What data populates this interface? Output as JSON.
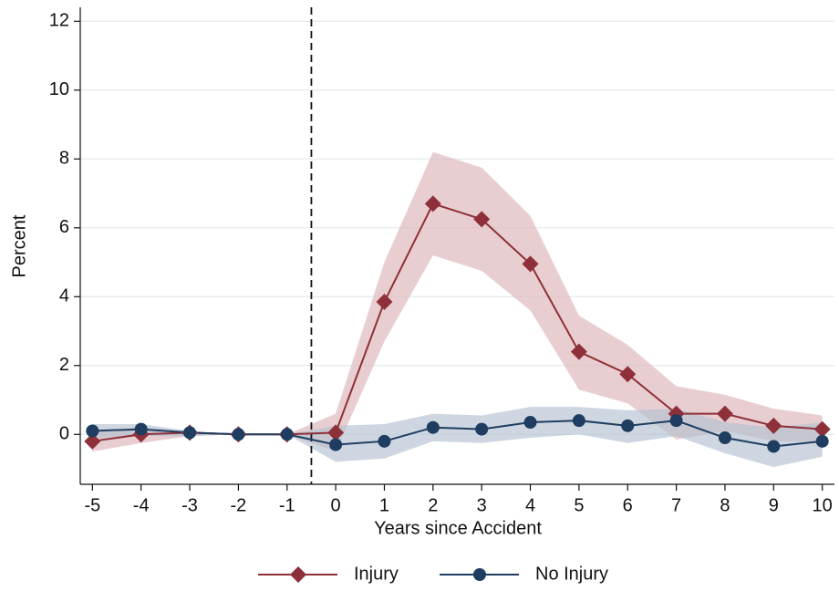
{
  "chart_data": {
    "type": "line",
    "x_label": "Years since Accident",
    "y_label": "Percent",
    "x": [
      -5,
      -4,
      -3,
      -2,
      -1,
      0,
      1,
      2,
      3,
      4,
      5,
      6,
      7,
      8,
      9,
      10
    ],
    "series": [
      {
        "name": "Injury",
        "color": "#8e3039",
        "band_color": "#dcb4b9",
        "marker": "diamond",
        "values": [
          -0.2,
          0,
          0.05,
          0,
          0,
          0.05,
          3.85,
          6.7,
          6.25,
          4.95,
          2.4,
          1.75,
          0.6,
          0.6,
          0.25,
          0.15
        ],
        "lower": [
          -0.5,
          -0.25,
          -0.05,
          0,
          0,
          -0.5,
          2.7,
          5.2,
          4.75,
          3.6,
          1.3,
          0.9,
          -0.15,
          0.1,
          -0.2,
          -0.2
        ],
        "upper": [
          0.1,
          0.2,
          0.1,
          0,
          0,
          0.6,
          5.0,
          8.2,
          7.75,
          6.35,
          3.45,
          2.6,
          1.4,
          1.15,
          0.75,
          0.55
        ]
      },
      {
        "name": "No Injury",
        "color": "#1e3d60",
        "band_color": "#b3c1d1",
        "marker": "circle",
        "values": [
          0.1,
          0.15,
          0.05,
          0,
          0,
          -0.3,
          -0.2,
          0.2,
          0.15,
          0.35,
          0.4,
          0.25,
          0.4,
          -0.1,
          -0.35,
          -0.2
        ],
        "lower": [
          -0.1,
          -0.05,
          -0.05,
          0,
          0,
          -0.8,
          -0.7,
          -0.2,
          -0.25,
          -0.1,
          0,
          -0.25,
          -0.05,
          -0.55,
          -0.95,
          -0.65
        ],
        "upper": [
          0.3,
          0.3,
          0.1,
          0,
          0,
          0.25,
          0.3,
          0.6,
          0.55,
          0.8,
          0.8,
          0.7,
          0.75,
          0.35,
          0.2,
          0.35
        ]
      }
    ],
    "vline": -0.5,
    "xlim": [
      -5.25,
      10.25
    ],
    "xticks": [
      -5,
      -4,
      -3,
      -2,
      -1,
      0,
      1,
      2,
      3,
      4,
      5,
      6,
      7,
      8,
      9,
      10
    ],
    "ylim": [
      -1.45,
      12.3
    ],
    "yticks": [
      0,
      2,
      4,
      6,
      8,
      10,
      12
    ],
    "grid": true,
    "legend": "bottom"
  }
}
